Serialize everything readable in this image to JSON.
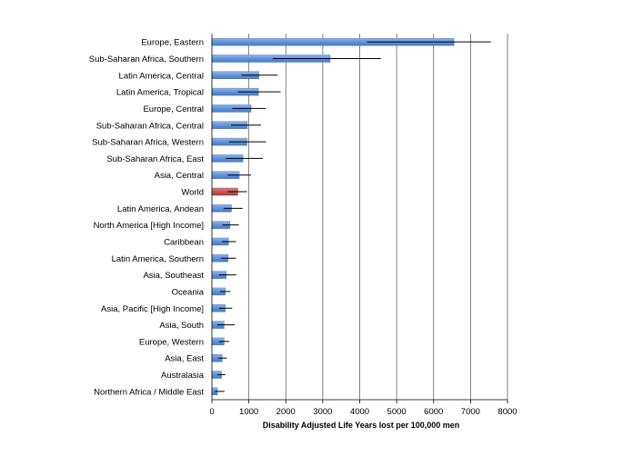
{
  "chart_data": {
    "type": "bar",
    "orientation": "horizontal",
    "xlabel": "Disability Adjusted Life Years lost per 100,000 men",
    "xlim": [
      0,
      8000
    ],
    "xticks": [
      0,
      1000,
      2000,
      3000,
      4000,
      5000,
      6000,
      7000,
      8000
    ],
    "grid": "vertical",
    "colors": {
      "bar": "#5b8fd6",
      "highlight": "#c0504d",
      "error": "#000000",
      "grid": "#666666"
    },
    "highlight_category": "World",
    "categories": [
      "Europe, Eastern",
      "Sub-Saharan Africa, Southern",
      "Latin America, Central",
      "Latin America, Tropical",
      "Europe, Central",
      "Sub-Saharan Africa, Central",
      "Sub-Saharan Africa, Western",
      "Sub-Saharan Africa, East",
      "Asia, Central",
      "World",
      "Latin America, Andean",
      "North America [High Income]",
      "Caribbean",
      "Latin America, Southern",
      "Asia, Southeast",
      "Oceania",
      "Asia, Pacific [High Income]",
      "Asia, South",
      "Europe, Western",
      "Asia, East",
      "Australasia",
      "Northern Africa / Middle East"
    ],
    "values": [
      6550,
      3200,
      1270,
      1260,
      1060,
      960,
      950,
      840,
      740,
      700,
      530,
      490,
      450,
      440,
      390,
      360,
      360,
      330,
      330,
      280,
      260,
      150
    ],
    "error_low": [
      4200,
      1650,
      800,
      700,
      550,
      520,
      460,
      380,
      430,
      430,
      320,
      290,
      270,
      250,
      190,
      220,
      190,
      140,
      190,
      160,
      150,
      80
    ],
    "error_high": [
      7550,
      4570,
      1780,
      1860,
      1460,
      1330,
      1460,
      1380,
      1060,
      950,
      830,
      730,
      650,
      650,
      660,
      500,
      550,
      620,
      470,
      400,
      360,
      340
    ]
  }
}
